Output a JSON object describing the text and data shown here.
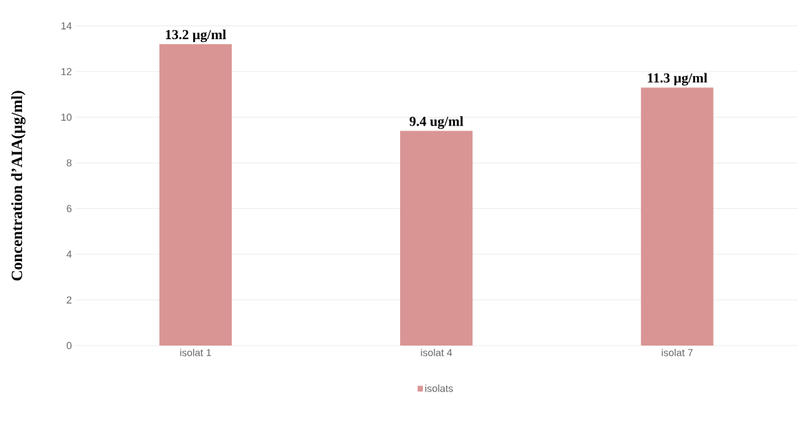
{
  "chart_data": {
    "type": "bar",
    "ylabel": "Concentration d’AIA(µg/ml)",
    "categories": [
      "isolat 1",
      "isolat 4",
      "isolat 7"
    ],
    "series": [
      {
        "name": "isolats",
        "color": "#d99594",
        "values": [
          13.2,
          9.4,
          11.3
        ],
        "value_labels": [
          "13.2 µg/ml",
          "9.4 ug/ml",
          "11.3 µg/ml"
        ]
      }
    ],
    "ylim": [
      0,
      14
    ],
    "yticks": [
      0,
      2,
      4,
      6,
      8,
      10,
      12,
      14
    ],
    "grid": "y",
    "legend": "bottom"
  }
}
